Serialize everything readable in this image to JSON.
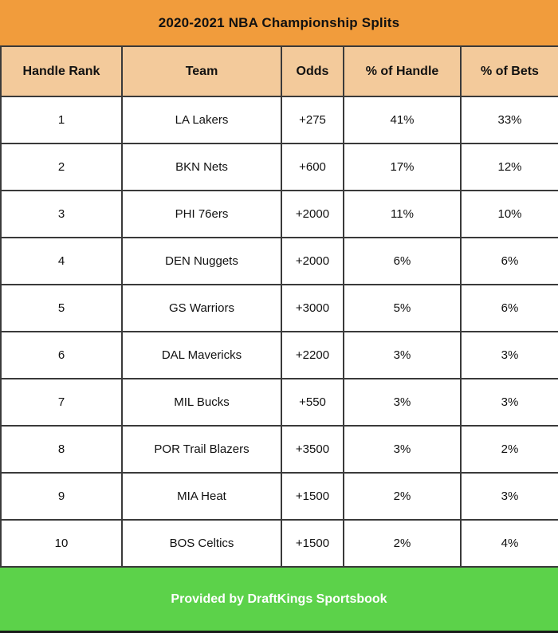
{
  "title": "2020-2021 NBA Championship Splits",
  "table": {
    "headers": [
      "Handle Rank",
      "Team",
      "Odds",
      "% of Handle",
      "% of Bets"
    ]
  },
  "chart_data": {
    "type": "table",
    "title": "2020-2021 NBA Championship Splits",
    "columns": [
      "Handle Rank",
      "Team",
      "Odds",
      "% of Handle",
      "% of Bets"
    ],
    "rows": [
      [
        "1",
        "LA Lakers",
        "+275",
        "41%",
        "33%"
      ],
      [
        "2",
        "BKN Nets",
        "+600",
        "17%",
        "12%"
      ],
      [
        "3",
        "PHI 76ers",
        "+2000",
        "11%",
        "10%"
      ],
      [
        "4",
        "DEN Nuggets",
        "+2000",
        "6%",
        "6%"
      ],
      [
        "5",
        "GS Warriors",
        "+3000",
        "5%",
        "6%"
      ],
      [
        "6",
        "DAL Mavericks",
        "+2200",
        "3%",
        "3%"
      ],
      [
        "7",
        "MIL Bucks",
        "+550",
        "3%",
        "3%"
      ],
      [
        "8",
        "POR Trail Blazers",
        "+3500",
        "3%",
        "2%"
      ],
      [
        "9",
        "MIA Heat",
        "+1500",
        "2%",
        "3%"
      ],
      [
        "10",
        "BOS Celtics",
        "+1500",
        "2%",
        "4%"
      ]
    ]
  },
  "footer": {
    "text": "Provided by DraftKings Sportsbook"
  },
  "colors": {
    "title_bg": "#F19C3C",
    "header_bg": "#F3CA9B",
    "footer_bg": "#5CD24A",
    "border": "#3a3a3a",
    "row_bg": "#ffffff",
    "title_text": "#111111",
    "footer_text": "#ffffff",
    "footer_bottom_edge": "#1a1a1a"
  }
}
